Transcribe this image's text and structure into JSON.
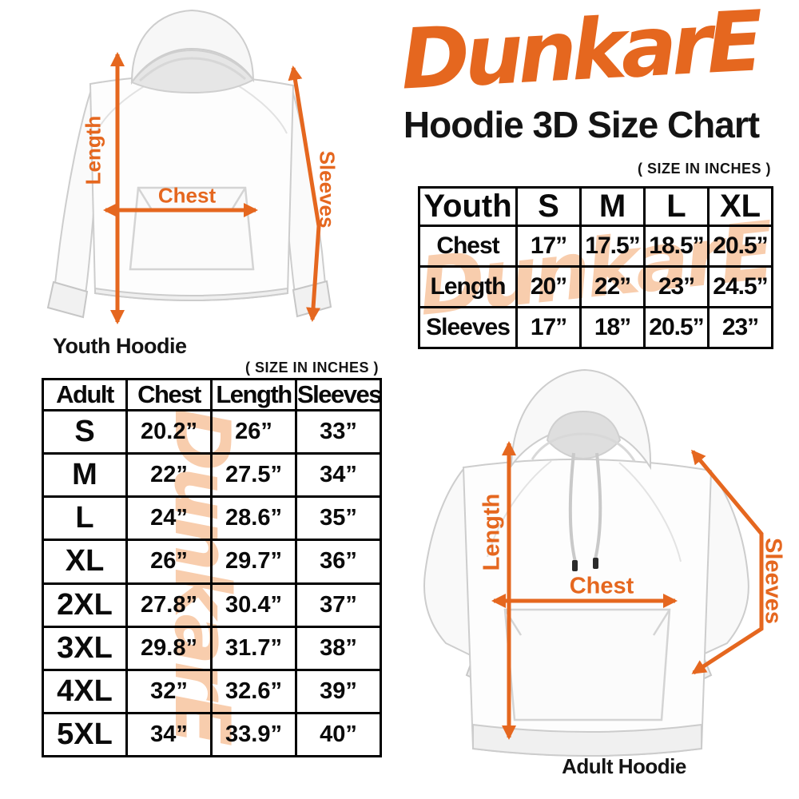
{
  "brand": {
    "logo_text": "DunkarE",
    "accent_color": "#E5671F",
    "watermark_color": "#F8CDAD"
  },
  "title": "Hoodie 3D Size Chart",
  "size_note": "( SIZE IN INCHES )",
  "youth": {
    "caption": "Youth Hoodie",
    "measure_labels": {
      "length": "Length",
      "chest": "Chest",
      "sleeves": "Sleeves"
    },
    "table": {
      "header": [
        "Youth",
        "S",
        "M",
        "L",
        "XL"
      ],
      "rows": [
        {
          "label": "Chest",
          "values": [
            "17”",
            "17.5”",
            "18.5”",
            "20.5”"
          ]
        },
        {
          "label": "Length",
          "values": [
            "20”",
            "22”",
            "23”",
            "24.5”"
          ]
        },
        {
          "label": "Sleeves",
          "values": [
            "17”",
            "18”",
            "20.5”",
            "23”"
          ]
        }
      ]
    }
  },
  "adult": {
    "caption": "Adult Hoodie",
    "measure_labels": {
      "length": "Length",
      "chest": "Chest",
      "sleeves": "Sleeves"
    },
    "table": {
      "header": [
        "Adult",
        "Chest",
        "Length",
        "Sleeves"
      ],
      "rows": [
        {
          "label": "S",
          "values": [
            "20.2”",
            "26”",
            "33”"
          ]
        },
        {
          "label": "M",
          "values": [
            "22”",
            "27.5”",
            "34”"
          ]
        },
        {
          "label": "L",
          "values": [
            "24”",
            "28.6”",
            "35”"
          ]
        },
        {
          "label": "XL",
          "values": [
            "26”",
            "29.7”",
            "36”"
          ]
        },
        {
          "label": "2XL",
          "values": [
            "27.8”",
            "30.4”",
            "37”"
          ]
        },
        {
          "label": "3XL",
          "values": [
            "29.8”",
            "31.7”",
            "38”"
          ]
        },
        {
          "label": "4XL",
          "values": [
            "32”",
            "32.6”",
            "39”"
          ]
        },
        {
          "label": "5XL",
          "values": [
            "34”",
            "33.9”",
            "40”"
          ]
        }
      ]
    }
  },
  "chart_data": [
    {
      "type": "table",
      "title": "Youth Hoodie sizes (inches)",
      "columns": [
        "Youth",
        "S",
        "M",
        "L",
        "XL"
      ],
      "rows": [
        [
          "Chest",
          17,
          17.5,
          18.5,
          20.5
        ],
        [
          "Length",
          20,
          22,
          23,
          24.5
        ],
        [
          "Sleeves",
          17,
          18,
          20.5,
          23
        ]
      ]
    },
    {
      "type": "table",
      "title": "Adult Hoodie sizes (inches)",
      "columns": [
        "Adult",
        "Chest",
        "Length",
        "Sleeves"
      ],
      "rows": [
        [
          "S",
          20.2,
          26,
          33
        ],
        [
          "M",
          22,
          27.5,
          34
        ],
        [
          "L",
          24,
          28.6,
          35
        ],
        [
          "XL",
          26,
          29.7,
          36
        ],
        [
          "2XL",
          27.8,
          30.4,
          37
        ],
        [
          "3XL",
          29.8,
          31.7,
          38
        ],
        [
          "4XL",
          32,
          32.6,
          39
        ],
        [
          "5XL",
          34,
          33.9,
          40
        ]
      ]
    }
  ]
}
